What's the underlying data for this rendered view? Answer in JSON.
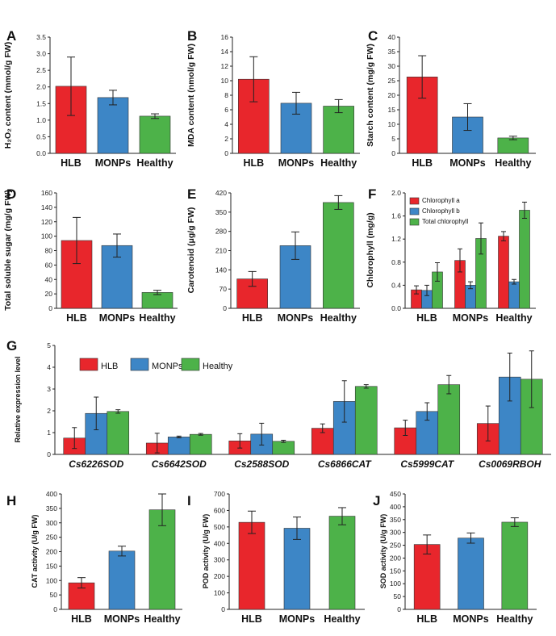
{
  "colors": {
    "HLB": "#e8262c",
    "MONPs": "#3d86c6",
    "Healthy": "#4db249",
    "Chlorophyll a": "#e8262c",
    "Chlorophyll b": "#3d86c6",
    "Total chlorophyll": "#4db249"
  },
  "chart_data": [
    {
      "id": "A",
      "type": "bar",
      "panel_label": "A",
      "ylabel": "H₂O₂ content (mmol/g FW)",
      "categories": [
        "HLB",
        "MONPs",
        "Healthy"
      ],
      "values": [
        2.02,
        1.68,
        1.12
      ],
      "errors": [
        0.88,
        0.22,
        0.07
      ],
      "ylim": [
        0,
        3.5
      ],
      "yticks": [
        "0.0",
        "0.5",
        "1.0",
        "1.5",
        "2.0",
        "2.5",
        "3.0",
        "3.5"
      ]
    },
    {
      "id": "B",
      "type": "bar",
      "panel_label": "B",
      "ylabel": "MDA content (nmol/g FW)",
      "categories": [
        "HLB",
        "MONPs",
        "Healthy"
      ],
      "values": [
        10.2,
        6.9,
        6.5
      ],
      "errors": [
        3.1,
        1.5,
        0.9
      ],
      "ylim": [
        0,
        16
      ],
      "yticks": [
        "0",
        "2",
        "4",
        "6",
        "8",
        "10",
        "12",
        "14",
        "16"
      ]
    },
    {
      "id": "C",
      "type": "bar",
      "panel_label": "C",
      "ylabel": "Starch content (mg/g FW)",
      "categories": [
        "HLB",
        "MONPs",
        "Healthy"
      ],
      "values": [
        26.3,
        12.5,
        5.3
      ],
      "errors": [
        7.3,
        4.6,
        0.6
      ],
      "ylim": [
        0,
        40
      ],
      "yticks": [
        "0",
        "5",
        "10",
        "15",
        "20",
        "25",
        "30",
        "35",
        "40"
      ]
    },
    {
      "id": "D",
      "type": "bar",
      "panel_label": "D",
      "ylabel": "Total soluble sugar (mg/g FW)",
      "categories": [
        "HLB",
        "MONPs",
        "Healthy"
      ],
      "values": [
        94,
        87,
        22
      ],
      "errors": [
        32,
        16,
        3
      ],
      "ylim": [
        0,
        160
      ],
      "yticks": [
        "0",
        "20",
        "40",
        "60",
        "80",
        "100",
        "120",
        "140",
        "160"
      ]
    },
    {
      "id": "E",
      "type": "bar",
      "panel_label": "E",
      "ylabel": "Carotenoid (μg/g FW)",
      "categories": [
        "HLB",
        "MONPs",
        "Healthy"
      ],
      "values": [
        107,
        228,
        385
      ],
      "errors": [
        27,
        50,
        25
      ],
      "ylim": [
        0,
        420
      ],
      "yticks": [
        "0",
        "70",
        "140",
        "210",
        "280",
        "350",
        "420"
      ]
    },
    {
      "id": "F",
      "type": "bar",
      "panel_label": "F",
      "ylabel": "Chlorophyll (mg/g)",
      "categories": [
        "HLB",
        "MONPs",
        "Healthy"
      ],
      "series": [
        {
          "name": "Chlorophyll a",
          "values": [
            0.32,
            0.83,
            1.25
          ],
          "errors": [
            0.07,
            0.2,
            0.08
          ]
        },
        {
          "name": "Chlorophyll b",
          "values": [
            0.31,
            0.4,
            0.46
          ],
          "errors": [
            0.09,
            0.06,
            0.04
          ]
        },
        {
          "name": "Total chlorophyll",
          "values": [
            0.63,
            1.21,
            1.7
          ],
          "errors": [
            0.16,
            0.27,
            0.14
          ]
        }
      ],
      "ylim": [
        0,
        2.0
      ],
      "yticks": [
        "0.0",
        "0.4",
        "0.8",
        "1.2",
        "1.6",
        "2.0"
      ],
      "legend_position": "top-left"
    },
    {
      "id": "G",
      "type": "bar",
      "panel_label": "G",
      "ylabel": "Relative expression level",
      "categories": [
        "Cs6226SOD",
        "Cs6642SOD",
        "Cs2588SOD",
        "Cs6866CAT",
        "Cs5999CAT",
        "Cs0069RBOH"
      ],
      "series": [
        {
          "name": "HLB",
          "values": [
            0.75,
            0.52,
            0.62,
            1.2,
            1.22,
            1.42
          ],
          "errors": [
            0.48,
            0.45,
            0.33,
            0.2,
            0.35,
            0.8
          ]
        },
        {
          "name": "MONPs",
          "values": [
            1.88,
            0.8,
            0.93,
            2.43,
            1.97,
            3.55
          ],
          "errors": [
            0.75,
            0.04,
            0.5,
            0.95,
            0.4,
            1.1
          ]
        },
        {
          "name": "Healthy",
          "values": [
            1.97,
            0.92,
            0.6,
            3.12,
            3.2,
            3.45
          ],
          "errors": [
            0.08,
            0.04,
            0.05,
            0.08,
            0.42,
            1.3
          ]
        }
      ],
      "ylim": [
        0,
        5
      ],
      "yticks": [
        "0",
        "1",
        "2",
        "3",
        "4",
        "5"
      ],
      "legend_position": "top-left"
    },
    {
      "id": "H",
      "type": "bar",
      "panel_label": "H",
      "ylabel": "CAT activity (U/g FW)",
      "categories": [
        "HLB",
        "MONPs",
        "Healthy"
      ],
      "values": [
        92,
        202,
        345
      ],
      "errors": [
        18,
        17,
        55
      ],
      "ylim": [
        0,
        400
      ],
      "yticks": [
        "0",
        "50",
        "100",
        "150",
        "200",
        "250",
        "300",
        "350",
        "400"
      ]
    },
    {
      "id": "I",
      "type": "bar",
      "panel_label": "I",
      "ylabel": "POD activity (U/g FW)",
      "categories": [
        "HLB",
        "MONPs",
        "Healthy"
      ],
      "values": [
        528,
        492,
        565
      ],
      "errors": [
        68,
        68,
        52
      ],
      "ylim": [
        0,
        700
      ],
      "yticks": [
        "0",
        "100",
        "200",
        "300",
        "400",
        "500",
        "600",
        "700"
      ]
    },
    {
      "id": "J",
      "type": "bar",
      "panel_label": "J",
      "ylabel": "SOD activity (U/g FW)",
      "categories": [
        "HLB",
        "MONPs",
        "Healthy"
      ],
      "values": [
        253,
        278,
        340
      ],
      "errors": [
        37,
        20,
        17
      ],
      "ylim": [
        0,
        450
      ],
      "yticks": [
        "0",
        "50",
        "100",
        "150",
        "200",
        "250",
        "300",
        "350",
        "400",
        "450"
      ]
    }
  ]
}
